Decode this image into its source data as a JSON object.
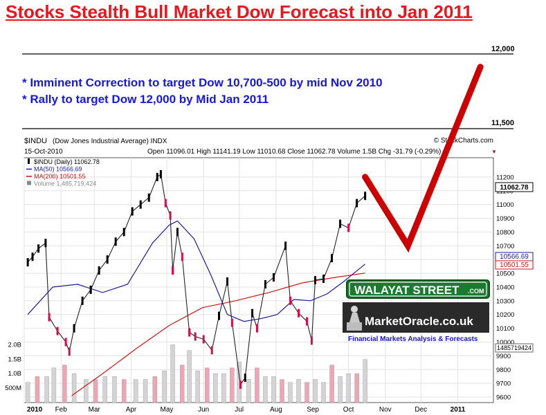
{
  "headline": "Stocks Stealth Bull Market Dow Forecast into Jan 2011",
  "notes": [
    "* Imminent Correction to target Dow 10,700-500 by mid Nov 2010",
    "* Rally to target Dow 12,000 by Mid Jan 2011"
  ],
  "source_credit": "© StockCharts.com",
  "chart_header": {
    "symbol": "$INDU",
    "name": "(Dow Jones Industrial Average) INDX",
    "date": "15-Oct-2010",
    "ohlc": "Open 11096.01  High 11141.19  Low 11010.68  Close 11062.78  Volume 1.5B  Chg -31.79 (-0.29%)",
    "chg_arrow": "▼"
  },
  "legend": [
    {
      "label": "$INDU (Daily) 11062.78",
      "color": "#000000",
      "marker": "candle"
    },
    {
      "label": "MA(50) 10566.69",
      "color": "#1c1c9c",
      "marker": "line"
    },
    {
      "label": "MA(200) 10501.55",
      "color": "#d11515",
      "marker": "line"
    },
    {
      "label": "Volume 1,485,719,424",
      "color": "#888888",
      "marker": "bars"
    }
  ],
  "price_badges": [
    "11062.78",
    "10566.69",
    "10501.55"
  ],
  "volume_badge": "1485719424",
  "forecast_levels": [
    "12,000",
    "11,500"
  ],
  "logos": {
    "walayat": "WALAYAT STREET",
    "walayat_suffix": ".COM",
    "marketoracle": "MarketOracle.co.uk",
    "tagline": "Financial Markets Analysis & Forecasts"
  },
  "colors": {
    "up_candle": "#000000",
    "down_candle": "#d0104b",
    "ma50": "#1c1c9c",
    "ma200": "#d11515",
    "volume_up": "#d4d4d4",
    "volume_down": "#f0a4b4",
    "forecast": "#cc0000",
    "headline": "#e8161d",
    "notes": "#1717e0"
  },
  "chart_data": {
    "type": "line",
    "title": "$INDU (Dow Jones Industrial Average) INDX",
    "x_ticks": [
      "2010",
      "Feb",
      "Mar",
      "Apr",
      "May",
      "Jun",
      "Jul",
      "Aug",
      "Sep",
      "Oct",
      "Nov",
      "Dec",
      "2011"
    ],
    "y_ticks": [
      9600,
      9700,
      9800,
      9900,
      10000,
      10100,
      10200,
      10300,
      10400,
      10500,
      10600,
      10700,
      10800,
      10900,
      11000,
      11100,
      11200
    ],
    "ylim": [
      9580,
      11280
    ],
    "volume_ticks": [
      "500M",
      "1.0B",
      "1.5B",
      "2.0B"
    ],
    "volume_ylim": [
      0,
      2.8
    ],
    "grid": true,
    "legend_position": "top-left",
    "price_points": [
      [
        "2010-01-04",
        10580
      ],
      [
        "2010-01-08",
        10620
      ],
      [
        "2010-01-13",
        10680
      ],
      [
        "2010-01-19",
        10720
      ],
      [
        "2010-01-22",
        10180
      ],
      [
        "2010-01-29",
        10080
      ],
      [
        "2010-02-05",
        10000
      ],
      [
        "2010-02-08",
        9930
      ],
      [
        "2010-02-12",
        10100
      ],
      [
        "2010-02-19",
        10300
      ],
      [
        "2010-02-26",
        10380
      ],
      [
        "2010-03-05",
        10520
      ],
      [
        "2010-03-12",
        10600
      ],
      [
        "2010-03-19",
        10730
      ],
      [
        "2010-03-26",
        10800
      ],
      [
        "2010-04-02",
        10950
      ],
      [
        "2010-04-09",
        11000
      ],
      [
        "2010-04-16",
        11050
      ],
      [
        "2010-04-23",
        11200
      ],
      [
        "2010-04-26",
        11220
      ],
      [
        "2010-04-30",
        11010
      ],
      [
        "2010-05-04",
        10920
      ],
      [
        "2010-05-06",
        10520
      ],
      [
        "2010-05-10",
        10800
      ],
      [
        "2010-05-14",
        10620
      ],
      [
        "2010-05-20",
        10070
      ],
      [
        "2010-05-25",
        10040
      ],
      [
        "2010-06-01",
        10020
      ],
      [
        "2010-06-08",
        9940
      ],
      [
        "2010-06-14",
        10190
      ],
      [
        "2010-06-21",
        10440
      ],
      [
        "2010-06-25",
        10140
      ],
      [
        "2010-07-02",
        9690
      ],
      [
        "2010-07-06",
        9740
      ],
      [
        "2010-07-12",
        10210
      ],
      [
        "2010-07-16",
        10100
      ],
      [
        "2010-07-23",
        10420
      ],
      [
        "2010-07-30",
        10470
      ],
      [
        "2010-08-09",
        10700
      ],
      [
        "2010-08-13",
        10300
      ],
      [
        "2010-08-20",
        10210
      ],
      [
        "2010-08-27",
        10150
      ],
      [
        "2010-08-31",
        10010
      ],
      [
        "2010-09-03",
        10450
      ],
      [
        "2010-09-10",
        10460
      ],
      [
        "2010-09-17",
        10610
      ],
      [
        "2010-09-24",
        10860
      ],
      [
        "2010-10-01",
        10830
      ],
      [
        "2010-10-08",
        11010
      ],
      [
        "2010-10-15",
        11062.78
      ]
    ],
    "ma50_points": [
      [
        "2010-01-04",
        10200
      ],
      [
        "2010-01-25",
        10400
      ],
      [
        "2010-02-15",
        10420
      ],
      [
        "2010-03-08",
        10360
      ],
      [
        "2010-03-29",
        10420
      ],
      [
        "2010-04-19",
        10720
      ],
      [
        "2010-05-03",
        10850
      ],
      [
        "2010-05-10",
        10880
      ],
      [
        "2010-05-24",
        10750
      ],
      [
        "2010-06-07",
        10490
      ],
      [
        "2010-06-21",
        10200
      ],
      [
        "2010-07-05",
        10150
      ],
      [
        "2010-07-19",
        10170
      ],
      [
        "2010-08-02",
        10200
      ],
      [
        "2010-08-16",
        10310
      ],
      [
        "2010-08-30",
        10300
      ],
      [
        "2010-09-13",
        10350
      ],
      [
        "2010-09-27",
        10440
      ],
      [
        "2010-10-15",
        10566.69
      ]
    ],
    "ma200_points": [
      [
        "2010-02-10",
        9610
      ],
      [
        "2010-03-08",
        9770
      ],
      [
        "2010-04-05",
        9950
      ],
      [
        "2010-05-03",
        10120
      ],
      [
        "2010-05-31",
        10250
      ],
      [
        "2010-06-28",
        10300
      ],
      [
        "2010-07-26",
        10360
      ],
      [
        "2010-08-23",
        10430
      ],
      [
        "2010-09-20",
        10470
      ],
      [
        "2010-10-15",
        10501.55
      ]
    ],
    "volume_bars": [
      {
        "x": "2010-01-04",
        "v": 0.7
      },
      {
        "x": "2010-01-12",
        "v": 0.9
      },
      {
        "x": "2010-01-20",
        "v": 0.9
      },
      {
        "x": "2010-01-26",
        "v": 1.2
      },
      {
        "x": "2010-02-04",
        "v": 1.3
      },
      {
        "x": "2010-02-12",
        "v": 1.0
      },
      {
        "x": "2010-02-22",
        "v": 0.8
      },
      {
        "x": "2010-03-02",
        "v": 0.8
      },
      {
        "x": "2010-03-10",
        "v": 0.9
      },
      {
        "x": "2010-03-18",
        "v": 0.9
      },
      {
        "x": "2010-03-26",
        "v": 0.8
      },
      {
        "x": "2010-04-05",
        "v": 0.8
      },
      {
        "x": "2010-04-13",
        "v": 0.8
      },
      {
        "x": "2010-04-21",
        "v": 0.9
      },
      {
        "x": "2010-04-29",
        "v": 1.1
      },
      {
        "x": "2010-05-06",
        "v": 2.0
      },
      {
        "x": "2010-05-14",
        "v": 1.3
      },
      {
        "x": "2010-05-20",
        "v": 1.8
      },
      {
        "x": "2010-05-27",
        "v": 1.1
      },
      {
        "x": "2010-06-04",
        "v": 1.2
      },
      {
        "x": "2010-06-11",
        "v": 1.0
      },
      {
        "x": "2010-06-18",
        "v": 1.0
      },
      {
        "x": "2010-06-25",
        "v": 1.2
      },
      {
        "x": "2010-07-01",
        "v": 1.4
      },
      {
        "x": "2010-07-09",
        "v": 0.8
      },
      {
        "x": "2010-07-16",
        "v": 1.2
      },
      {
        "x": "2010-07-23",
        "v": 0.9
      },
      {
        "x": "2010-07-30",
        "v": 0.9
      },
      {
        "x": "2010-08-06",
        "v": 0.8
      },
      {
        "x": "2010-08-13",
        "v": 0.7
      },
      {
        "x": "2010-08-20",
        "v": 0.8
      },
      {
        "x": "2010-08-27",
        "v": 0.7
      },
      {
        "x": "2010-09-03",
        "v": 0.8
      },
      {
        "x": "2010-09-10",
        "v": 0.7
      },
      {
        "x": "2010-09-17",
        "v": 1.3
      },
      {
        "x": "2010-09-24",
        "v": 0.9
      },
      {
        "x": "2010-10-01",
        "v": 1.0
      },
      {
        "x": "2010-10-08",
        "v": 1.0
      },
      {
        "x": "2010-10-15",
        "v": 1.49
      }
    ],
    "forecast_path": [
      [
        "2010-10-15",
        11200
      ],
      [
        "2010-11-20",
        10700
      ],
      [
        "2011-01-20",
        12000
      ]
    ]
  }
}
